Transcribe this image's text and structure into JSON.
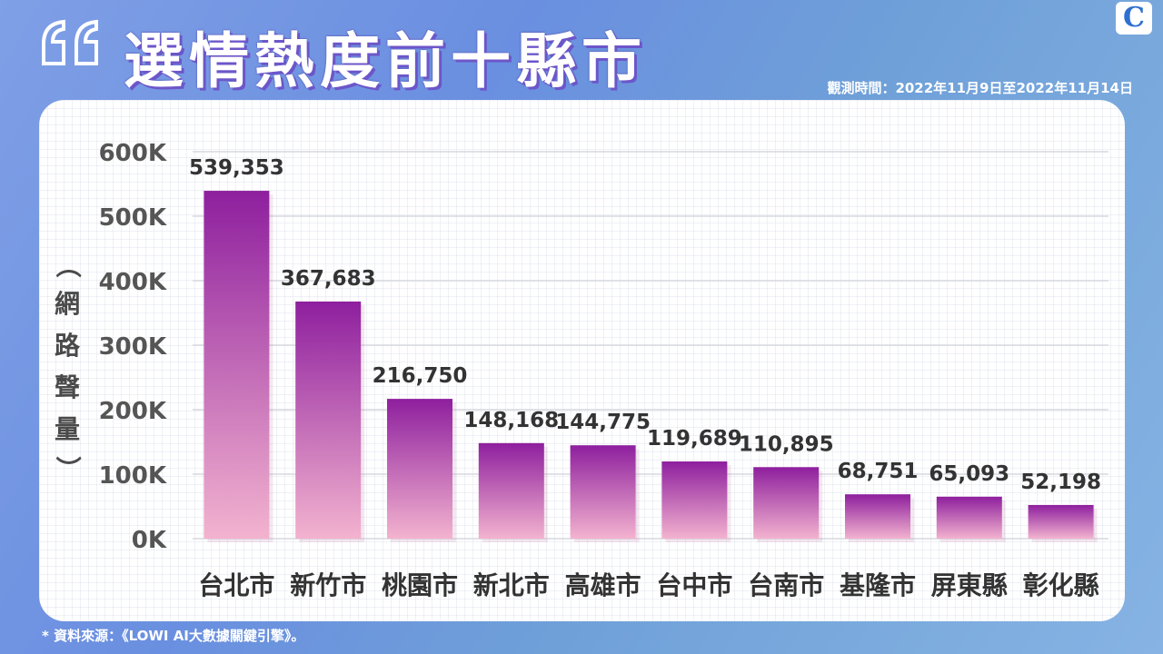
{
  "header": {
    "title": "選情熱度前十縣市",
    "obs_period": "觀測時間：2022年11月9日至2022年11月14日",
    "source": "* 資料來源：《LOWI AI大數據關鍵引擎》。",
    "logo_letter": "C"
  },
  "colors": {
    "bar_top": "#8e1f9e",
    "bar_bottom": "#f3b3cf",
    "axis_text": "#555555",
    "label_text": "#333333"
  },
  "chart_data": {
    "type": "bar",
    "ylabel": "（網路聲量）",
    "ylabel_chars": [
      "網",
      "路",
      "聲",
      "量"
    ],
    "ylabel_open": "（",
    "ylabel_close": "）",
    "ylim": [
      0,
      600000
    ],
    "yticks": [
      0,
      100000,
      200000,
      300000,
      400000,
      500000,
      600000
    ],
    "ytick_labels": [
      "0K",
      "100K",
      "200K",
      "300K",
      "400K",
      "500K",
      "600K"
    ],
    "grid": true,
    "categories": [
      "台北市",
      "新竹市",
      "桃園市",
      "新北市",
      "高雄市",
      "台中市",
      "台南市",
      "基隆市",
      "屏東縣",
      "彰化縣"
    ],
    "values": [
      539353,
      367683,
      216750,
      148168,
      144775,
      119689,
      110895,
      68751,
      65093,
      52198
    ],
    "value_labels": [
      "539,353",
      "367,683",
      "216,750",
      "148,168",
      "144,775",
      "119,689",
      "110,895",
      "68,751",
      "65,093",
      "52,198"
    ]
  }
}
